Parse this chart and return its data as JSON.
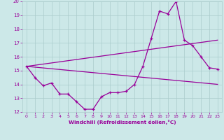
{
  "xlabel": "Windchill (Refroidissement éolien,°C)",
  "background_color": "#cce8e8",
  "line_color": "#990099",
  "grid_color": "#aacccc",
  "xlim": [
    -0.5,
    23.5
  ],
  "ylim": [
    12,
    20
  ],
  "yticks": [
    12,
    13,
    14,
    15,
    16,
    17,
    18,
    19,
    20
  ],
  "xticks": [
    0,
    1,
    2,
    3,
    4,
    5,
    6,
    7,
    8,
    9,
    10,
    11,
    12,
    13,
    14,
    15,
    16,
    17,
    18,
    19,
    20,
    21,
    22,
    23
  ],
  "line1_x": [
    0,
    1,
    2,
    3,
    4,
    5,
    6,
    7,
    8,
    9,
    10,
    11,
    12,
    13,
    14,
    15,
    16,
    17,
    18,
    19,
    20,
    21,
    22,
    23
  ],
  "line1_y": [
    15.3,
    14.5,
    13.9,
    14.1,
    13.3,
    13.3,
    12.75,
    12.2,
    12.2,
    13.1,
    13.4,
    13.4,
    13.5,
    14.0,
    15.3,
    17.3,
    19.3,
    19.1,
    20.0,
    17.2,
    16.8,
    16.0,
    15.2,
    15.1
  ],
  "line2_x": [
    0,
    23
  ],
  "line2_y": [
    15.3,
    17.2
  ],
  "line3_x": [
    0,
    23
  ],
  "line3_y": [
    15.3,
    14.0
  ]
}
